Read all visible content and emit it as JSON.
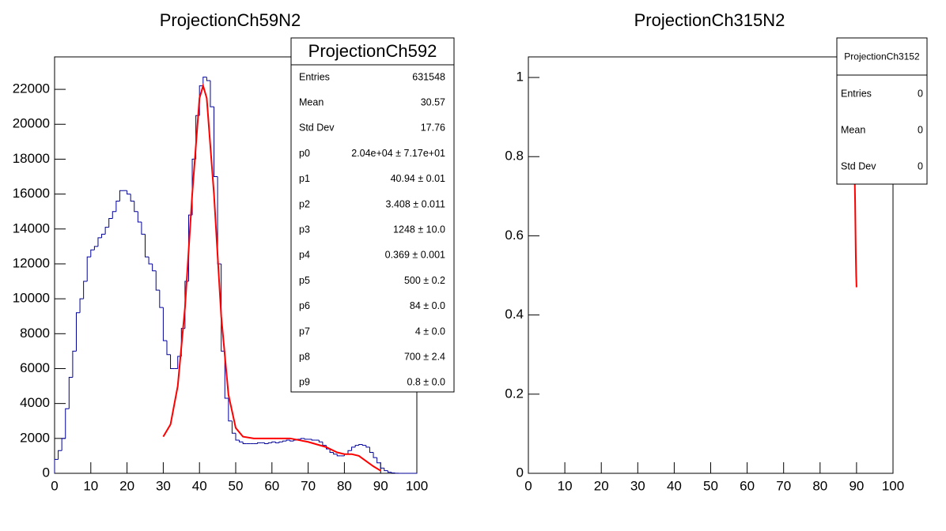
{
  "chart_data": [
    {
      "type": "histogram",
      "title": "ProjectionCh59N2",
      "color": "#000099",
      "bins": [
        0,
        1,
        2,
        3,
        4,
        5,
        6,
        7,
        8,
        9,
        10,
        11,
        12,
        13,
        14,
        15,
        16,
        17,
        18,
        19,
        20,
        21,
        22,
        23,
        24,
        25,
        26,
        27,
        28,
        29,
        30,
        31,
        32,
        33,
        34,
        35,
        36,
        37,
        38,
        39,
        40,
        41,
        42,
        43,
        44,
        45,
        46,
        47,
        48,
        49,
        50,
        51,
        52,
        53,
        54,
        55,
        56,
        57,
        58,
        59,
        60,
        61,
        62,
        63,
        64,
        65,
        66,
        67,
        68,
        69,
        70,
        71,
        72,
        73,
        74,
        75,
        76,
        77,
        78,
        79,
        80,
        81,
        82,
        83,
        84,
        85,
        86,
        87,
        88,
        89,
        90,
        91,
        92,
        93,
        94,
        95,
        96,
        97,
        98,
        99,
        100
      ],
      "counts": [
        800,
        1300,
        2000,
        3700,
        5500,
        7000,
        9200,
        10000,
        11000,
        12400,
        12800,
        13000,
        13500,
        13700,
        14100,
        14600,
        15000,
        15600,
        16200,
        16200,
        16000,
        15600,
        15000,
        14400,
        13700,
        12400,
        12000,
        11600,
        10500,
        9500,
        7600,
        6800,
        6000,
        6000,
        6700,
        8300,
        11000,
        14800,
        18000,
        20500,
        22200,
        22700,
        22500,
        21000,
        17000,
        12000,
        7000,
        4300,
        3000,
        2300,
        1900,
        1800,
        1700,
        1700,
        1700,
        1700,
        1750,
        1750,
        1700,
        1750,
        1800,
        1750,
        1800,
        1850,
        1900,
        1850,
        1900,
        1950,
        2000,
        1950,
        1950,
        1900,
        1900,
        1800,
        1600,
        1400,
        1200,
        1100,
        1000,
        1000,
        1100,
        1300,
        1500,
        1600,
        1650,
        1600,
        1500,
        1200,
        900,
        600,
        300,
        150,
        60,
        20,
        5,
        0,
        0,
        0,
        0,
        0
      ],
      "fit": {
        "color": "#ff0000",
        "x": [
          30,
          32,
          34,
          36,
          38,
          40,
          41,
          42,
          44,
          46,
          48,
          50,
          52,
          55,
          60,
          65,
          70,
          75,
          78,
          80,
          82,
          84,
          86,
          88,
          90
        ],
        "values": [
          2100,
          2800,
          5000,
          9500,
          16000,
          21500,
          22200,
          21500,
          16000,
          9000,
          4500,
          2600,
          2100,
          2000,
          2000,
          2000,
          1800,
          1500,
          1200,
          1100,
          1100,
          1000,
          700,
          400,
          150
        ]
      },
      "xlim": [
        0,
        100
      ],
      "xticks": [
        0,
        10,
        20,
        30,
        40,
        50,
        60,
        70,
        80,
        90,
        100
      ],
      "ylim": [
        0,
        23860
      ],
      "yticks": [
        0,
        2000,
        4000,
        6000,
        8000,
        10000,
        12000,
        14000,
        16000,
        18000,
        20000,
        22000
      ],
      "stats": {
        "title": "ProjectionCh592",
        "rows": [
          [
            "Entries",
            "631548"
          ],
          [
            "Mean",
            "30.57"
          ],
          [
            "Std Dev",
            "17.76"
          ],
          [
            "p0",
            "2.04e+04 ± 7.17e+01"
          ],
          [
            "p1",
            "40.94 ± 0.01"
          ],
          [
            "p2",
            "3.408 ± 0.011"
          ],
          [
            "p3",
            "1248 ± 10.0"
          ],
          [
            "p4",
            "0.369 ± 0.001"
          ],
          [
            "p5",
            "500 ± 0.2"
          ],
          [
            "p6",
            "84 ± 0.0"
          ],
          [
            "p7",
            "4 ± 0.0"
          ],
          [
            "p8",
            "700 ± 2.4"
          ],
          [
            "p9",
            "0.8 ± 0.0"
          ]
        ]
      }
    },
    {
      "type": "histogram",
      "title": "ProjectionCh315N2",
      "color": "#000099",
      "fit": {
        "color": "#ff0000",
        "x": [
          88.8,
          89.0,
          89.3,
          89.6,
          89.8,
          89.9,
          90.0
        ],
        "values": [
          1.05,
          0.98,
          0.85,
          0.69,
          0.55,
          0.5,
          0.47
        ]
      },
      "xlim": [
        0,
        100
      ],
      "xticks": [
        0,
        10,
        20,
        30,
        40,
        50,
        60,
        70,
        80,
        90,
        100
      ],
      "ylim": [
        0,
        1.052
      ],
      "yticks": [
        0,
        0.2,
        0.4,
        0.6,
        0.8,
        1
      ],
      "stats": {
        "title": "ProjectionCh3152",
        "rows": [
          [
            "Entries",
            "0"
          ],
          [
            "Mean",
            "0"
          ],
          [
            "Std Dev",
            "0"
          ]
        ]
      }
    }
  ]
}
